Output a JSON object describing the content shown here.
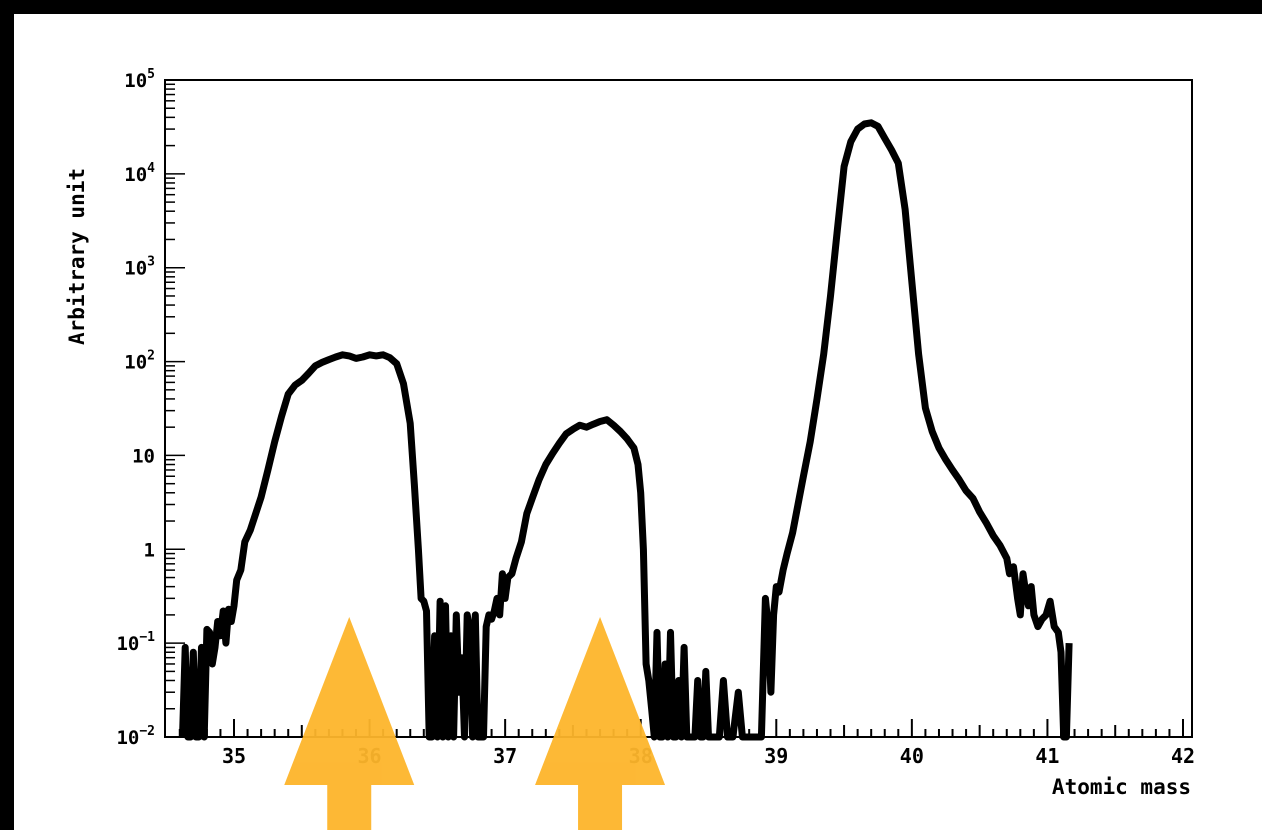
{
  "chart_data": {
    "type": "line",
    "xlabel": "Atomic mass",
    "ylabel": "Arbitrary unit",
    "xlim": [
      34.6,
      42
    ],
    "ylim": [
      0.01,
      100000
    ],
    "yscale": "log",
    "grid": false,
    "x_ticks": [
      "35",
      "36",
      "37",
      "38",
      "39",
      "40",
      "41",
      "42"
    ],
    "y_ticks": [
      {
        "base": "10",
        "exp": "5",
        "value": 100000
      },
      {
        "base": "10",
        "exp": "4",
        "value": 10000
      },
      {
        "base": "10",
        "exp": "3",
        "value": 1000
      },
      {
        "base": "10",
        "exp": "2",
        "value": 100
      },
      {
        "base": "10",
        "exp": "",
        "value": 10
      },
      {
        "base": "1",
        "exp": "",
        "value": 1
      },
      {
        "base": "10",
        "exp": "−1",
        "value": 0.1
      },
      {
        "base": "10",
        "exp": "−2",
        "value": 0.01
      }
    ],
    "series": [
      {
        "color": "#000000",
        "points": [
          [
            34.62,
            0.01
          ],
          [
            34.64,
            0.09
          ],
          [
            34.66,
            0.01
          ],
          [
            34.68,
            0.01
          ],
          [
            34.7,
            0.08
          ],
          [
            34.72,
            0.01
          ],
          [
            34.74,
            0.01
          ],
          [
            34.76,
            0.09
          ],
          [
            34.78,
            0.01
          ],
          [
            34.8,
            0.14
          ],
          [
            34.82,
            0.13
          ],
          [
            34.84,
            0.06
          ],
          [
            34.86,
            0.09
          ],
          [
            34.88,
            0.17
          ],
          [
            34.9,
            0.12
          ],
          [
            34.92,
            0.22
          ],
          [
            34.94,
            0.1
          ],
          [
            34.96,
            0.23
          ],
          [
            34.98,
            0.17
          ],
          [
            35.0,
            0.25
          ],
          [
            35.02,
            0.47
          ],
          [
            35.05,
            0.6
          ],
          [
            35.08,
            1.2
          ],
          [
            35.12,
            1.6
          ],
          [
            35.16,
            2.4
          ],
          [
            35.2,
            3.6
          ],
          [
            35.25,
            7
          ],
          [
            35.3,
            14
          ],
          [
            35.35,
            26
          ],
          [
            35.4,
            45
          ],
          [
            35.45,
            56
          ],
          [
            35.5,
            63
          ],
          [
            35.55,
            75
          ],
          [
            35.6,
            90
          ],
          [
            35.65,
            98
          ],
          [
            35.7,
            105
          ],
          [
            35.75,
            112
          ],
          [
            35.8,
            118
          ],
          [
            35.85,
            115
          ],
          [
            35.9,
            108
          ],
          [
            35.95,
            112
          ],
          [
            36.0,
            118
          ],
          [
            36.05,
            115
          ],
          [
            36.1,
            118
          ],
          [
            36.15,
            110
          ],
          [
            36.2,
            95
          ],
          [
            36.25,
            58
          ],
          [
            36.3,
            22
          ],
          [
            36.33,
            5
          ],
          [
            36.36,
            1
          ],
          [
            36.38,
            0.3
          ],
          [
            36.4,
            0.28
          ],
          [
            36.42,
            0.22
          ],
          [
            36.44,
            0.01
          ],
          [
            36.46,
            0.01
          ],
          [
            36.48,
            0.12
          ],
          [
            36.5,
            0.01
          ],
          [
            36.52,
            0.28
          ],
          [
            36.54,
            0.01
          ],
          [
            36.56,
            0.25
          ],
          [
            36.58,
            0.01
          ],
          [
            36.6,
            0.12
          ],
          [
            36.62,
            0.01
          ],
          [
            36.64,
            0.2
          ],
          [
            36.66,
            0.03
          ],
          [
            36.68,
            0.07
          ],
          [
            36.7,
            0.01
          ],
          [
            36.72,
            0.2
          ],
          [
            36.74,
            0.14
          ],
          [
            36.76,
            0.01
          ],
          [
            36.78,
            0.2
          ],
          [
            36.8,
            0.01
          ],
          [
            36.82,
            0.01
          ],
          [
            36.84,
            0.01
          ],
          [
            36.86,
            0.15
          ],
          [
            36.88,
            0.2
          ],
          [
            36.9,
            0.18
          ],
          [
            36.92,
            0.22
          ],
          [
            36.94,
            0.3
          ],
          [
            36.96,
            0.2
          ],
          [
            36.98,
            0.55
          ],
          [
            37.0,
            0.3
          ],
          [
            37.02,
            0.5
          ],
          [
            37.05,
            0.55
          ],
          [
            37.08,
            0.8
          ],
          [
            37.12,
            1.2
          ],
          [
            37.16,
            2.4
          ],
          [
            37.2,
            3.5
          ],
          [
            37.25,
            5.5
          ],
          [
            37.3,
            8
          ],
          [
            37.35,
            10.5
          ],
          [
            37.4,
            13.5
          ],
          [
            37.45,
            17
          ],
          [
            37.5,
            19
          ],
          [
            37.55,
            21
          ],
          [
            37.6,
            20
          ],
          [
            37.65,
            21.5
          ],
          [
            37.7,
            23
          ],
          [
            37.75,
            24
          ],
          [
            37.8,
            21
          ],
          [
            37.85,
            18
          ],
          [
            37.9,
            15
          ],
          [
            37.95,
            12
          ],
          [
            37.98,
            8
          ],
          [
            38.0,
            4
          ],
          [
            38.02,
            1
          ],
          [
            38.04,
            0.06
          ],
          [
            38.06,
            0.04
          ],
          [
            38.08,
            0.02
          ],
          [
            38.1,
            0.01
          ],
          [
            38.12,
            0.13
          ],
          [
            38.14,
            0.01
          ],
          [
            38.16,
            0.01
          ],
          [
            38.18,
            0.06
          ],
          [
            38.2,
            0.01
          ],
          [
            38.22,
            0.13
          ],
          [
            38.24,
            0.01
          ],
          [
            38.26,
            0.01
          ],
          [
            38.28,
            0.04
          ],
          [
            38.3,
            0.01
          ],
          [
            38.32,
            0.09
          ],
          [
            38.34,
            0.01
          ],
          [
            38.36,
            0.01
          ],
          [
            38.38,
            0.01
          ],
          [
            38.4,
            0.01
          ],
          [
            38.42,
            0.04
          ],
          [
            38.44,
            0.01
          ],
          [
            38.46,
            0.01
          ],
          [
            38.48,
            0.05
          ],
          [
            38.5,
            0.01
          ],
          [
            38.52,
            0.01
          ],
          [
            38.55,
            0.01
          ],
          [
            38.58,
            0.01
          ],
          [
            38.61,
            0.04
          ],
          [
            38.64,
            0.01
          ],
          [
            38.68,
            0.01
          ],
          [
            38.72,
            0.03
          ],
          [
            38.75,
            0.01
          ],
          [
            38.8,
            0.01
          ],
          [
            38.85,
            0.01
          ],
          [
            38.89,
            0.01
          ],
          [
            38.92,
            0.3
          ],
          [
            38.94,
            0.15
          ],
          [
            38.96,
            0.03
          ],
          [
            38.98,
            0.2
          ],
          [
            39.0,
            0.4
          ],
          [
            39.02,
            0.35
          ],
          [
            39.05,
            0.6
          ],
          [
            39.08,
            0.9
          ],
          [
            39.12,
            1.5
          ],
          [
            39.16,
            3
          ],
          [
            39.2,
            6
          ],
          [
            39.25,
            14
          ],
          [
            39.3,
            40
          ],
          [
            39.35,
            120
          ],
          [
            39.4,
            500
          ],
          [
            39.45,
            2500
          ],
          [
            39.5,
            12000
          ],
          [
            39.55,
            22000
          ],
          [
            39.6,
            30000
          ],
          [
            39.65,
            34000
          ],
          [
            39.7,
            35000
          ],
          [
            39.75,
            32000
          ],
          [
            39.8,
            24000
          ],
          [
            39.85,
            18000
          ],
          [
            39.9,
            13000
          ],
          [
            39.95,
            4200
          ],
          [
            40.0,
            700
          ],
          [
            40.05,
            120
          ],
          [
            40.1,
            32
          ],
          [
            40.15,
            18
          ],
          [
            40.2,
            12
          ],
          [
            40.25,
            9
          ],
          [
            40.3,
            7
          ],
          [
            40.35,
            5.5
          ],
          [
            40.4,
            4.2
          ],
          [
            40.45,
            3.5
          ],
          [
            40.5,
            2.5
          ],
          [
            40.55,
            1.9
          ],
          [
            40.6,
            1.4
          ],
          [
            40.65,
            1.1
          ],
          [
            40.7,
            0.8
          ],
          [
            40.72,
            0.55
          ],
          [
            40.75,
            0.65
          ],
          [
            40.78,
            0.3
          ],
          [
            40.8,
            0.2
          ],
          [
            40.82,
            0.55
          ],
          [
            40.84,
            0.35
          ],
          [
            40.86,
            0.25
          ],
          [
            40.88,
            0.4
          ],
          [
            40.9,
            0.2
          ],
          [
            40.93,
            0.15
          ],
          [
            40.96,
            0.18
          ],
          [
            40.99,
            0.2
          ],
          [
            41.02,
            0.28
          ],
          [
            41.05,
            0.15
          ],
          [
            41.08,
            0.13
          ],
          [
            41.1,
            0.08
          ],
          [
            41.12,
            0.01
          ],
          [
            41.14,
            0.01
          ],
          [
            41.16,
            0.1
          ]
        ]
      }
    ]
  },
  "annotations": {
    "arrows": [
      {
        "x": 35.85,
        "color": "#FDB52B"
      },
      {
        "x": 37.7,
        "color": "#FDB52B"
      }
    ]
  }
}
